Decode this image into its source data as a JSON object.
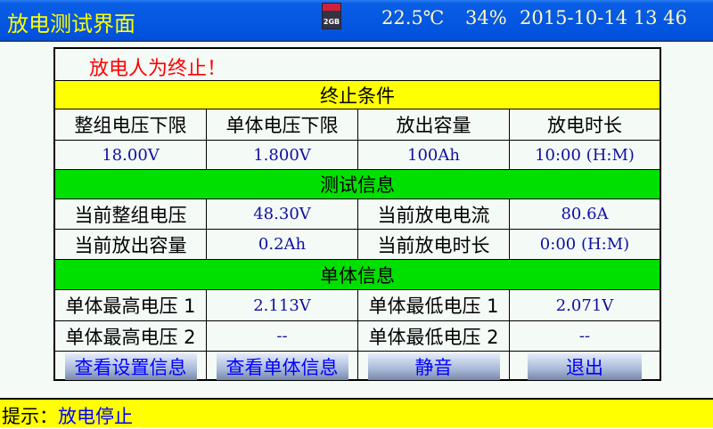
{
  "header": {
    "title": "放电测试界面",
    "sd_card": "2GB",
    "temperature": "22.5℃",
    "humidity": "34%",
    "datetime": "2015-10-14 13 46"
  },
  "alert": "放电人为终止！",
  "termination": {
    "title": "终止条件",
    "headers": [
      "整组电压下限",
      "单体电压下限",
      "放出容量",
      "放电时长"
    ],
    "values": [
      "18.00V",
      "1.800V",
      "100Ah",
      "10:00 (H:M)"
    ]
  },
  "test_info": {
    "title": "测试信息",
    "rows": [
      [
        "当前整组电压",
        "48.30V",
        "当前放电电流",
        "80.6A"
      ],
      [
        "当前放出容量",
        "0.2Ah",
        "当前放电时长",
        "0:00 (H:M)"
      ]
    ]
  },
  "cell_info": {
    "title": "单体信息",
    "rows": [
      [
        "单体最高电压 1",
        "2.113V",
        "单体最低电压 1",
        "2.071V"
      ],
      [
        "单体最高电压 2",
        "--",
        "单体最低电压 2",
        "--"
      ]
    ]
  },
  "buttons": [
    "查看设置信息",
    "查看单体信息",
    "静音",
    "退出"
  ],
  "status": {
    "label": "提示：",
    "text": "放电停止"
  },
  "colors": {
    "header": "#0050dc",
    "band_yellow": "#ffff00",
    "band_green": "#00e000",
    "alert": "#ff0000"
  }
}
